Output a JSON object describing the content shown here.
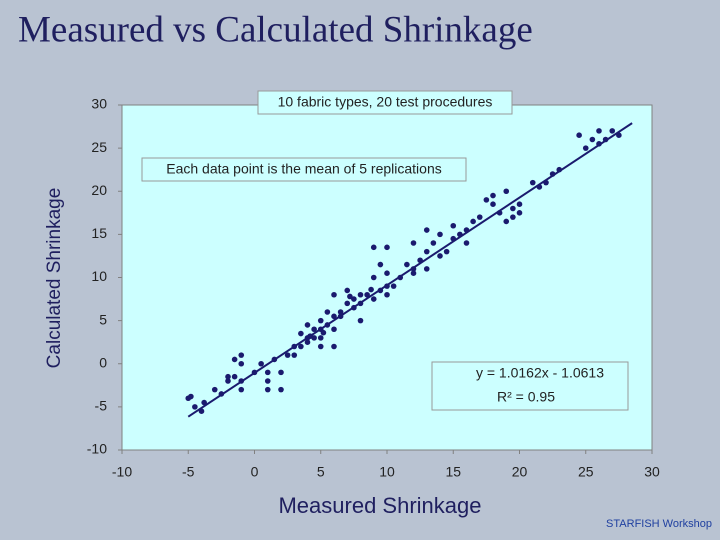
{
  "chart_data": {
    "type": "scatter",
    "title": "Measured vs Calculated Shrinkage",
    "xlabel": "Measured Shrinkage",
    "ylabel": "Calculated Shrinkage",
    "color": "#1a1a6e",
    "line_color": "#1a1a6e",
    "xlim": [
      -10,
      30
    ],
    "ylim": [
      -10,
      30
    ],
    "xticks": [
      -10,
      -5,
      0,
      5,
      10,
      15,
      20,
      25,
      30
    ],
    "yticks": [
      -10,
      -5,
      0,
      5,
      10,
      15,
      20,
      25,
      30
    ],
    "x": [
      -5,
      -4.5,
      -4,
      -3.8,
      -4.8,
      -3,
      -2.5,
      -2,
      -1.5,
      -1,
      -1,
      0.5,
      0,
      1,
      1,
      1.5,
      2,
      2.5,
      -1,
      -1.5,
      -2,
      -1,
      1,
      2,
      3,
      3.5,
      4,
      4,
      4.5,
      4.5,
      5,
      5,
      5.5,
      5,
      4,
      5.5,
      6,
      6,
      3,
      3.5,
      5,
      6.5,
      7,
      7.5,
      8,
      8,
      8.5,
      9,
      9.5,
      10,
      10,
      7,
      6,
      7.5,
      6.5,
      8,
      9,
      10,
      10.5,
      9.5,
      9,
      10,
      11,
      11.5,
      12,
      12.5,
      13,
      13.5,
      13,
      14,
      14.5,
      15,
      15.5,
      16,
      13,
      12,
      14,
      15,
      16.5,
      17,
      17.5,
      18,
      18.5,
      19,
      19.5,
      20,
      20,
      19.5,
      18,
      19,
      21,
      22,
      22.5,
      23,
      21.5,
      25,
      25.5,
      26,
      26.5,
      27,
      27.5,
      26,
      24.5,
      12,
      16,
      6,
      4.2,
      5.2,
      7.2,
      8.8
    ],
    "values": [
      -4,
      -5,
      -5.5,
      -4.5,
      -3.8,
      -3,
      -3.5,
      -2,
      -1.5,
      -3,
      0,
      0,
      -1,
      -1,
      -2,
      0.5,
      -1,
      1,
      1,
      0.5,
      -1.5,
      -2,
      -3,
      -3,
      1,
      2,
      3,
      2.5,
      3,
      4,
      4,
      5,
      4.5,
      3,
      4.5,
      6,
      5.5,
      4,
      2,
      3.5,
      2,
      6,
      7,
      7.5,
      8,
      7,
      8,
      7.5,
      8.5,
      8,
      9,
      8.5,
      8,
      6.5,
      5.5,
      5,
      10,
      10.5,
      9,
      11.5,
      13.5,
      13.5,
      10,
      11.5,
      10.5,
      12,
      13,
      14,
      11,
      15,
      13,
      14.5,
      15,
      15.5,
      15.5,
      11,
      12.5,
      16,
      16.5,
      17,
      19,
      18.5,
      17.5,
      16.5,
      17,
      17.5,
      18.5,
      18,
      19.5,
      20,
      21,
      21,
      22,
      22.5,
      20.5,
      25,
      26,
      27,
      26,
      27,
      26.5,
      25.5,
      26.5,
      14,
      14,
      2,
      3.2,
      3.6,
      7.8,
      8.6
    ],
    "trendline": {
      "slope": 1.0162,
      "intercept": -1.0613,
      "x": [
        -5,
        28.5
      ]
    },
    "annotations": [
      "10 fabric types, 20 test procedures",
      "Each data point is the mean of 5 replications",
      "y = 1.0162x - 1.0613",
      "R² = 0.95"
    ],
    "footer": "STARFISH Workshop"
  }
}
